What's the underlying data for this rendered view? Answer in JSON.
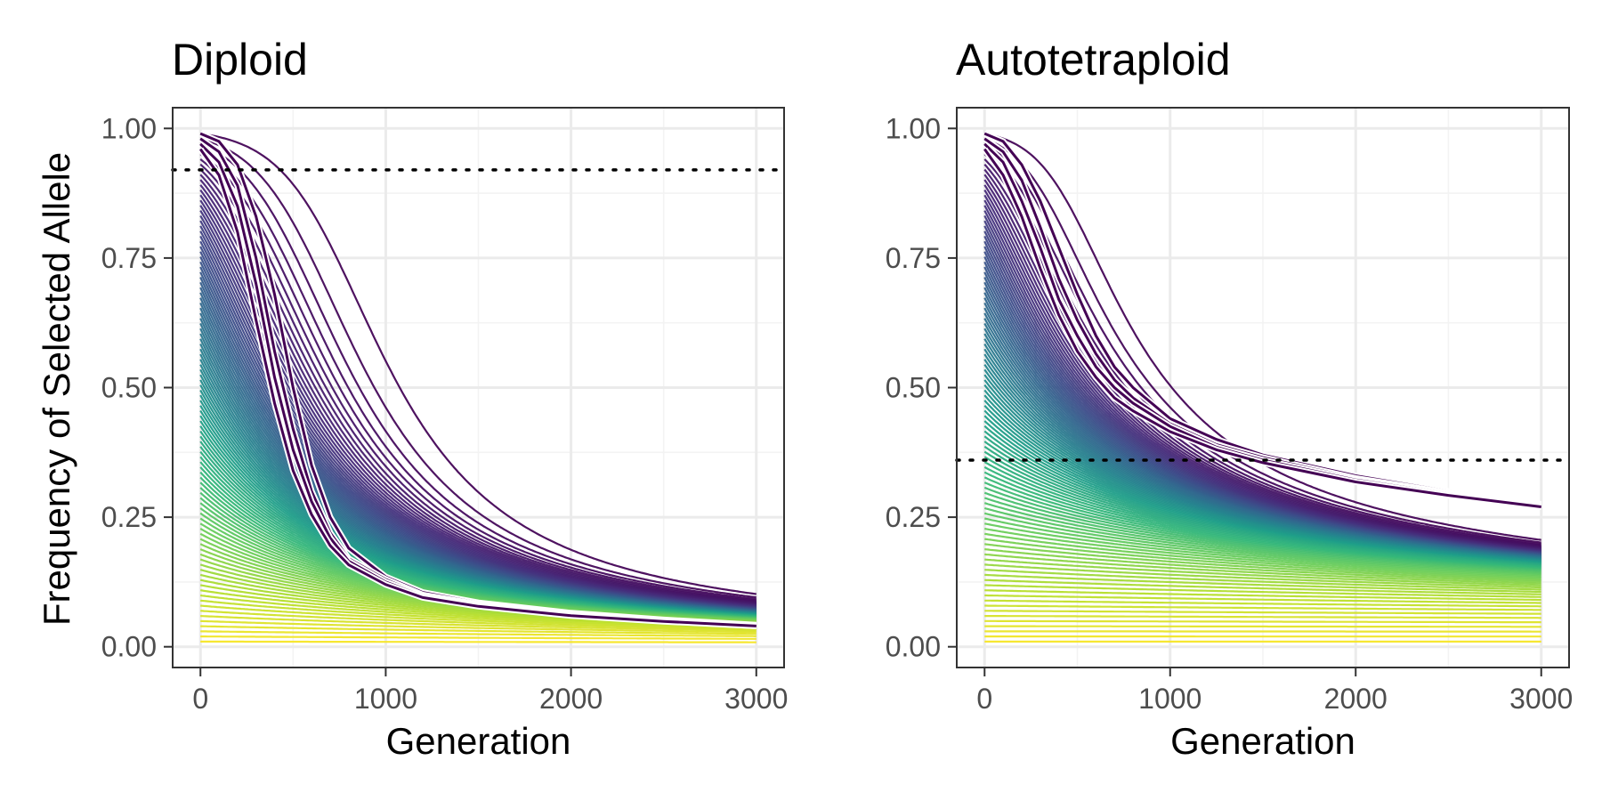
{
  "chart_data": [
    {
      "type": "line",
      "title": "Diploid",
      "xlabel": "Generation",
      "ylabel": "Frequency of Selected Allele",
      "xlim": [
        -150,
        3150
      ],
      "ylim": [
        -0.04,
        1.04
      ],
      "x_ticks": [
        "0",
        "1000",
        "2000",
        "3000"
      ],
      "y_ticks": [
        "0.00",
        "0.25",
        "0.50",
        "0.75",
        "1.00"
      ],
      "x_tick_values": [
        0,
        1000,
        2000,
        3000
      ],
      "y_tick_values": [
        0,
        0.25,
        0.5,
        0.75,
        1.0
      ],
      "grid": true,
      "threshold_y": 0.92,
      "series_family": {
        "description_of_data": "family of allele-frequency trajectories, one per starting frequency",
        "count": 100,
        "start_frequency_range": [
          0.01,
          0.99
        ],
        "generations": [
          0,
          3000
        ],
        "frequency_at_3000_range": [
          0.01,
          0.042
        ],
        "color_scale": "viridis",
        "color_high_start": "#440154",
        "color_low_start": "#fde725"
      },
      "highlight_series": [
        {
          "start": 0.99,
          "values": [
            [
              0,
              0.99
            ],
            [
              100,
              0.975
            ],
            [
              200,
              0.93
            ],
            [
              300,
              0.83
            ],
            [
              400,
              0.68
            ],
            [
              500,
              0.5
            ],
            [
              600,
              0.35
            ],
            [
              700,
              0.25
            ],
            [
              800,
              0.19
            ],
            [
              1000,
              0.135
            ],
            [
              1200,
              0.105
            ],
            [
              1500,
              0.085
            ],
            [
              2000,
              0.065
            ],
            [
              2500,
              0.052
            ],
            [
              3000,
              0.042
            ]
          ]
        },
        {
          "start": 0.98,
          "values": [
            [
              0,
              0.98
            ],
            [
              100,
              0.955
            ],
            [
              200,
              0.89
            ],
            [
              300,
              0.75
            ],
            [
              400,
              0.57
            ],
            [
              500,
              0.42
            ],
            [
              600,
              0.3
            ],
            [
              700,
              0.22
            ],
            [
              800,
              0.17
            ],
            [
              1000,
              0.13
            ],
            [
              1200,
              0.1
            ],
            [
              1500,
              0.082
            ],
            [
              2000,
              0.063
            ],
            [
              2500,
              0.05
            ],
            [
              3000,
              0.041
            ]
          ]
        },
        {
          "start": 0.97,
          "values": [
            [
              0,
              0.97
            ],
            [
              100,
              0.935
            ],
            [
              200,
              0.85
            ],
            [
              300,
              0.7
            ],
            [
              400,
              0.52
            ],
            [
              500,
              0.38
            ],
            [
              600,
              0.28
            ],
            [
              700,
              0.21
            ],
            [
              800,
              0.165
            ],
            [
              1000,
              0.125
            ],
            [
              1200,
              0.098
            ],
            [
              1500,
              0.08
            ],
            [
              2000,
              0.062
            ],
            [
              2500,
              0.05
            ],
            [
              3000,
              0.04
            ]
          ]
        },
        {
          "start": 0.96,
          "values": [
            [
              0,
              0.96
            ],
            [
              100,
              0.91
            ],
            [
              200,
              0.8
            ],
            [
              300,
              0.63
            ],
            [
              400,
              0.47
            ],
            [
              500,
              0.34
            ],
            [
              600,
              0.255
            ],
            [
              700,
              0.195
            ],
            [
              800,
              0.158
            ],
            [
              1000,
              0.12
            ],
            [
              1200,
              0.095
            ],
            [
              1500,
              0.078
            ],
            [
              2000,
              0.06
            ],
            [
              2500,
              0.049
            ],
            [
              3000,
              0.04
            ]
          ]
        }
      ]
    },
    {
      "type": "line",
      "title": "Autotetraploid",
      "xlabel": "Generation",
      "ylabel": "",
      "xlim": [
        -150,
        3150
      ],
      "ylim": [
        -0.04,
        1.04
      ],
      "x_ticks": [
        "0",
        "1000",
        "2000",
        "3000"
      ],
      "y_ticks": [
        "0.00",
        "0.25",
        "0.50",
        "0.75",
        "1.00"
      ],
      "x_tick_values": [
        0,
        1000,
        2000,
        3000
      ],
      "y_tick_values": [
        0,
        0.25,
        0.5,
        0.75,
        1.0
      ],
      "grid": true,
      "threshold_y": 0.36,
      "series_family": {
        "description_of_data": "family of allele-frequency trajectories, one per starting frequency",
        "count": 100,
        "start_frequency_range": [
          0.01,
          0.99
        ],
        "generations": [
          0,
          3000
        ],
        "frequency_at_3000_range": [
          0.008,
          0.275
        ],
        "color_scale": "viridis",
        "color_high_start": "#440154",
        "color_low_start": "#fde725"
      },
      "highlight_series": [
        {
          "start": 0.99,
          "values": [
            [
              0,
              0.99
            ],
            [
              100,
              0.975
            ],
            [
              200,
              0.93
            ],
            [
              300,
              0.86
            ],
            [
              400,
              0.77
            ],
            [
              500,
              0.68
            ],
            [
              600,
              0.6
            ],
            [
              700,
              0.54
            ],
            [
              800,
              0.5
            ],
            [
              1000,
              0.44
            ],
            [
              1250,
              0.4
            ],
            [
              1500,
              0.37
            ],
            [
              2000,
              0.33
            ],
            [
              2500,
              0.3
            ],
            [
              3000,
              0.275
            ]
          ]
        },
        {
          "start": 0.98,
          "values": [
            [
              0,
              0.98
            ],
            [
              100,
              0.955
            ],
            [
              200,
              0.9
            ],
            [
              300,
              0.81
            ],
            [
              400,
              0.71
            ],
            [
              500,
              0.63
            ],
            [
              600,
              0.565
            ],
            [
              700,
              0.515
            ],
            [
              800,
              0.48
            ],
            [
              1000,
              0.43
            ],
            [
              1250,
              0.39
            ],
            [
              1500,
              0.365
            ],
            [
              2000,
              0.325
            ],
            [
              2500,
              0.297
            ],
            [
              3000,
              0.273
            ]
          ]
        },
        {
          "start": 0.97,
          "values": [
            [
              0,
              0.97
            ],
            [
              100,
              0.935
            ],
            [
              200,
              0.86
            ],
            [
              300,
              0.77
            ],
            [
              400,
              0.67
            ],
            [
              500,
              0.6
            ],
            [
              600,
              0.54
            ],
            [
              700,
              0.5
            ],
            [
              800,
              0.47
            ],
            [
              1000,
              0.425
            ],
            [
              1250,
              0.385
            ],
            [
              1500,
              0.36
            ],
            [
              2000,
              0.322
            ],
            [
              2500,
              0.295
            ],
            [
              3000,
              0.272
            ]
          ]
        },
        {
          "start": 0.96,
          "values": [
            [
              0,
              0.96
            ],
            [
              100,
              0.91
            ],
            [
              200,
              0.83
            ],
            [
              300,
              0.73
            ],
            [
              400,
              0.64
            ],
            [
              500,
              0.57
            ],
            [
              600,
              0.52
            ],
            [
              700,
              0.48
            ],
            [
              800,
              0.455
            ],
            [
              1000,
              0.415
            ],
            [
              1250,
              0.38
            ],
            [
              1500,
              0.355
            ],
            [
              2000,
              0.318
            ],
            [
              2500,
              0.292
            ],
            [
              3000,
              0.27
            ]
          ]
        }
      ]
    }
  ]
}
